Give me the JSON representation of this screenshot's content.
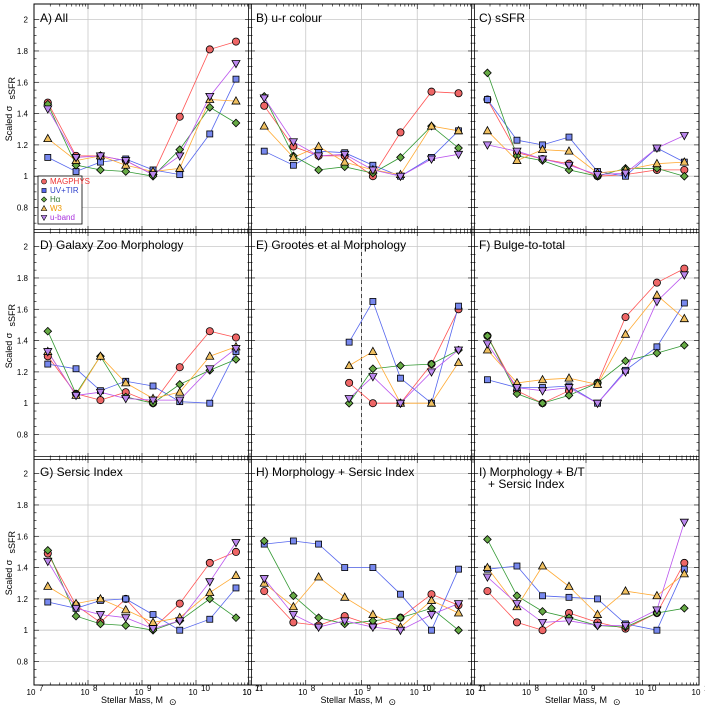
{
  "figure": {
    "xlabel": "Stellar Mass, M",
    "xlabel_sub": "⊙",
    "ylabel": "Scaled σ",
    "ylabel_sub": "sSFR",
    "colors": {
      "MAGPHYS": "#ff5555",
      "UV+TIR": "#5566ee",
      "Ha": "#339933",
      "W3": "#ffaa33",
      "u-band": "#bb55ee"
    },
    "fills": {
      "MAGPHYS": "#ee6666",
      "UV+TIR": "#7788ee",
      "Ha": "#66aa44",
      "W3": "#f0c060",
      "u-band": "#bb88ee"
    },
    "legend_labels": [
      "MAGPHYS",
      "UV+TIR",
      "Hα",
      "W3",
      "u-band"
    ],
    "legend_colors": [
      "#ee3333",
      "#3344cc",
      "#337733",
      "#ee9900",
      "#aa33dd"
    ],
    "x_tick_labels": [
      {
        "base": "10",
        "exp": "7"
      },
      {
        "base": "10",
        "exp": "8"
      },
      {
        "base": "10",
        "exp": "9"
      },
      {
        "base": "10",
        "exp": "10"
      },
      {
        "base": "10",
        "exp": "11"
      }
    ],
    "y_tick_labels": [
      "0.8",
      "1",
      "1.2",
      "1.4",
      "1.6",
      "1.8",
      "2"
    ]
  },
  "chart_data": [
    {
      "type": "line",
      "title": "A) All",
      "xscale": "log",
      "xlim": [
        10000000.0,
        100000000000.0
      ],
      "ylim": [
        0.65,
        2.1
      ],
      "x": [
        18000000.0,
        60000000.0,
        170000000.0,
        500000000.0,
        1600000000.0,
        5000000000.0,
        18000000000.0,
        55000000000.0
      ],
      "legend_position": "lower-left",
      "series": [
        {
          "name": "MAGPHYS",
          "values": [
            1.47,
            1.13,
            1.13,
            1.1,
            1.01,
            1.38,
            1.81,
            1.86
          ]
        },
        {
          "name": "UV+TIR",
          "values": [
            1.12,
            1.03,
            1.09,
            1.11,
            1.04,
            1.01,
            1.27,
            1.62
          ]
        },
        {
          "name": "Ha",
          "values": [
            1.46,
            1.07,
            1.04,
            1.03,
            1.0,
            1.17,
            1.44,
            1.34
          ]
        },
        {
          "name": "W3",
          "values": [
            1.24,
            1.1,
            1.13,
            1.07,
            1.03,
            1.05,
            1.49,
            1.48
          ]
        },
        {
          "name": "u-band",
          "values": [
            1.43,
            1.12,
            1.13,
            1.1,
            1.01,
            1.13,
            1.51,
            1.72
          ]
        }
      ]
    },
    {
      "type": "line",
      "title": "B) u-r colour",
      "xscale": "log",
      "xlim": [
        10000000.0,
        100000000000.0
      ],
      "ylim": [
        0.65,
        2.1
      ],
      "x": [
        18000000.0,
        60000000.0,
        170000000.0,
        500000000.0,
        1600000000.0,
        5000000000.0,
        18000000000.0,
        55000000000.0
      ],
      "series": [
        {
          "name": "MAGPHYS",
          "values": [
            1.45,
            1.19,
            1.13,
            1.13,
            1.0,
            1.28,
            1.54,
            1.53
          ]
        },
        {
          "name": "UV+TIR",
          "values": [
            1.16,
            1.07,
            1.16,
            1.15,
            1.07,
            1.0,
            1.12,
            1.29
          ]
        },
        {
          "name": "Ha",
          "values": [
            1.51,
            1.13,
            1.04,
            1.06,
            1.02,
            1.12,
            1.32,
            1.18
          ]
        },
        {
          "name": "W3",
          "values": [
            1.32,
            1.12,
            1.19,
            1.09,
            1.04,
            1.01,
            1.32,
            1.29
          ]
        },
        {
          "name": "u-band",
          "values": [
            1.5,
            1.22,
            1.13,
            1.14,
            1.04,
            1.0,
            1.11,
            1.14
          ]
        }
      ]
    },
    {
      "type": "line",
      "title": "C) sSFR",
      "xscale": "log",
      "xlim": [
        10000000.0,
        100000000000.0
      ],
      "ylim": [
        0.65,
        2.1
      ],
      "x": [
        18000000.0,
        60000000.0,
        170000000.0,
        500000000.0,
        1600000000.0,
        5000000000.0,
        18000000000.0,
        55000000000.0
      ],
      "series": [
        {
          "name": "MAGPHYS",
          "values": [
            1.49,
            1.15,
            1.11,
            1.08,
            1.0,
            1.01,
            1.04,
            1.04
          ]
        },
        {
          "name": "UV+TIR",
          "values": [
            1.49,
            1.23,
            1.2,
            1.25,
            1.03,
            1.0,
            1.18,
            1.09
          ]
        },
        {
          "name": "Ha",
          "values": [
            1.66,
            1.13,
            1.1,
            1.04,
            1.0,
            1.05,
            1.05,
            1.0
          ]
        },
        {
          "name": "W3",
          "values": [
            1.29,
            1.1,
            1.17,
            1.16,
            1.02,
            1.04,
            1.08,
            1.09
          ]
        },
        {
          "name": "u-band",
          "values": [
            1.2,
            1.16,
            1.11,
            1.07,
            1.01,
            1.02,
            1.18,
            1.26
          ]
        }
      ]
    },
    {
      "type": "line",
      "title": "D) Galaxy Zoo Morphology",
      "xscale": "log",
      "xlim": [
        10000000.0,
        100000000000.0
      ],
      "ylim": [
        0.65,
        2.1
      ],
      "x": [
        18000000.0,
        60000000.0,
        170000000.0,
        500000000.0,
        1600000000.0,
        5000000000.0,
        18000000000.0,
        55000000000.0
      ],
      "series": [
        {
          "name": "MAGPHYS",
          "values": [
            1.3,
            1.06,
            1.02,
            1.07,
            1.0,
            1.23,
            1.46,
            1.42
          ]
        },
        {
          "name": "UV+TIR",
          "values": [
            1.25,
            1.22,
            1.08,
            1.14,
            1.11,
            1.01,
            1.0,
            1.33
          ]
        },
        {
          "name": "Ha",
          "values": [
            1.46,
            1.06,
            1.3,
            1.04,
            1.0,
            1.12,
            1.21,
            1.28
          ]
        },
        {
          "name": "W3",
          "values": [
            1.33,
            1.05,
            1.3,
            1.13,
            1.03,
            1.07,
            1.3,
            1.36
          ]
        },
        {
          "name": "u-band",
          "values": [
            1.33,
            1.05,
            1.07,
            1.03,
            1.02,
            1.02,
            1.22,
            1.35
          ]
        }
      ]
    },
    {
      "type": "line",
      "title": "E) Grootes et al Morphology",
      "xscale": "log",
      "xlim": [
        10000000.0,
        100000000000.0
      ],
      "ylim": [
        0.65,
        2.1
      ],
      "x": [
        600000000.0,
        1600000000.0,
        5000000000.0,
        18000000000.0,
        55000000000.0
      ],
      "annotations": [
        {
          "type": "vline",
          "x": 1000000000.0,
          "style": "dashed"
        }
      ],
      "series": [
        {
          "name": "MAGPHYS",
          "values": [
            1.13,
            1.0,
            1.0,
            1.25,
            1.6
          ]
        },
        {
          "name": "UV+TIR",
          "values": [
            1.39,
            1.65,
            1.16,
            1.0,
            1.62
          ]
        },
        {
          "name": "Ha",
          "values": [
            1.0,
            1.22,
            1.24,
            1.25,
            1.34
          ]
        },
        {
          "name": "W3",
          "values": [
            1.24,
            1.33,
            1.0,
            1.0,
            1.26
          ]
        },
        {
          "name": "u-band",
          "values": [
            1.03,
            1.17,
            1.0,
            1.2,
            1.34
          ]
        }
      ]
    },
    {
      "type": "line",
      "title": "F) Bulge-to-total",
      "xscale": "log",
      "xlim": [
        10000000.0,
        100000000000.0
      ],
      "ylim": [
        0.65,
        2.1
      ],
      "x": [
        18000000.0,
        60000000.0,
        170000000.0,
        500000000.0,
        1600000000.0,
        5000000000.0,
        18000000000.0,
        55000000000.0
      ],
      "series": [
        {
          "name": "MAGPHYS",
          "values": [
            1.43,
            1.08,
            1.0,
            1.08,
            1.13,
            1.55,
            1.77,
            1.86
          ]
        },
        {
          "name": "UV+TIR",
          "values": [
            1.15,
            1.1,
            1.1,
            1.11,
            1.0,
            1.21,
            1.36,
            1.64
          ]
        },
        {
          "name": "Ha",
          "values": [
            1.43,
            1.06,
            1.0,
            1.05,
            1.13,
            1.27,
            1.32,
            1.37
          ]
        },
        {
          "name": "W3",
          "values": [
            1.34,
            1.13,
            1.15,
            1.16,
            1.12,
            1.44,
            1.69,
            1.54
          ]
        },
        {
          "name": "u-band",
          "values": [
            1.38,
            1.1,
            1.08,
            1.1,
            1.0,
            1.2,
            1.65,
            1.82
          ]
        }
      ]
    },
    {
      "type": "line",
      "title": "G) Sersic Index",
      "xscale": "log",
      "xlim": [
        10000000.0,
        100000000000.0
      ],
      "ylim": [
        0.65,
        2.1
      ],
      "x": [
        18000000.0,
        60000000.0,
        170000000.0,
        500000000.0,
        1600000000.0,
        5000000000.0,
        18000000000.0,
        55000000000.0
      ],
      "series": [
        {
          "name": "MAGPHYS",
          "values": [
            1.49,
            1.16,
            1.05,
            1.2,
            1.01,
            1.17,
            1.43,
            1.5
          ]
        },
        {
          "name": "UV+TIR",
          "values": [
            1.18,
            1.14,
            1.19,
            1.2,
            1.1,
            1.0,
            1.07,
            1.27
          ]
        },
        {
          "name": "Ha",
          "values": [
            1.51,
            1.09,
            1.04,
            1.03,
            1.0,
            1.06,
            1.2,
            1.08
          ]
        },
        {
          "name": "W3",
          "values": [
            1.28,
            1.17,
            1.2,
            1.13,
            1.05,
            1.08,
            1.24,
            1.35
          ]
        },
        {
          "name": "u-band",
          "values": [
            1.44,
            1.14,
            1.1,
            1.08,
            1.01,
            1.06,
            1.31,
            1.56
          ]
        }
      ]
    },
    {
      "type": "line",
      "title": "H) Morphology + Sersic Index",
      "xscale": "log",
      "xlim": [
        10000000.0,
        100000000000.0
      ],
      "ylim": [
        0.65,
        2.1
      ],
      "x": [
        18000000.0,
        60000000.0,
        170000000.0,
        500000000.0,
        1600000000.0,
        5000000000.0,
        18000000000.0,
        55000000000.0
      ],
      "series": [
        {
          "name": "MAGPHYS",
          "values": [
            1.25,
            1.05,
            1.03,
            1.09,
            1.03,
            1.08,
            1.23,
            1.16
          ]
        },
        {
          "name": "UV+TIR",
          "values": [
            1.55,
            1.57,
            1.55,
            1.4,
            1.4,
            1.23,
            1.0,
            1.39
          ]
        },
        {
          "name": "Ha",
          "values": [
            1.57,
            1.22,
            1.08,
            1.04,
            1.06,
            1.08,
            1.14,
            1.0
          ]
        },
        {
          "name": "W3",
          "values": [
            1.3,
            1.15,
            1.34,
            1.21,
            1.1,
            1.02,
            1.19,
            1.11
          ]
        },
        {
          "name": "u-band",
          "values": [
            1.33,
            1.1,
            1.02,
            1.06,
            1.02,
            1.0,
            1.1,
            1.17
          ]
        }
      ]
    },
    {
      "type": "line",
      "title": "I) Morphology + B/T + Sersic Index",
      "xscale": "log",
      "xlim": [
        10000000.0,
        100000000000.0
      ],
      "ylim": [
        0.65,
        2.1
      ],
      "x": [
        18000000.0,
        60000000.0,
        170000000.0,
        500000000.0,
        1600000000.0,
        5000000000.0,
        18000000000.0,
        55000000000.0
      ],
      "series": [
        {
          "name": "MAGPHYS",
          "values": [
            1.25,
            1.05,
            1.0,
            1.11,
            1.05,
            1.01,
            1.11,
            1.43
          ]
        },
        {
          "name": "UV+TIR",
          "values": [
            1.39,
            1.41,
            1.22,
            1.21,
            1.2,
            1.04,
            1.0,
            1.39
          ]
        },
        {
          "name": "Ha",
          "values": [
            1.58,
            1.22,
            1.12,
            1.08,
            1.03,
            1.02,
            1.11,
            1.14
          ]
        },
        {
          "name": "W3",
          "values": [
            1.4,
            1.15,
            1.41,
            1.28,
            1.1,
            1.25,
            1.22,
            1.36
          ]
        },
        {
          "name": "u-band",
          "values": [
            1.34,
            1.17,
            1.05,
            1.06,
            1.03,
            1.03,
            1.13,
            1.69
          ]
        }
      ]
    }
  ]
}
